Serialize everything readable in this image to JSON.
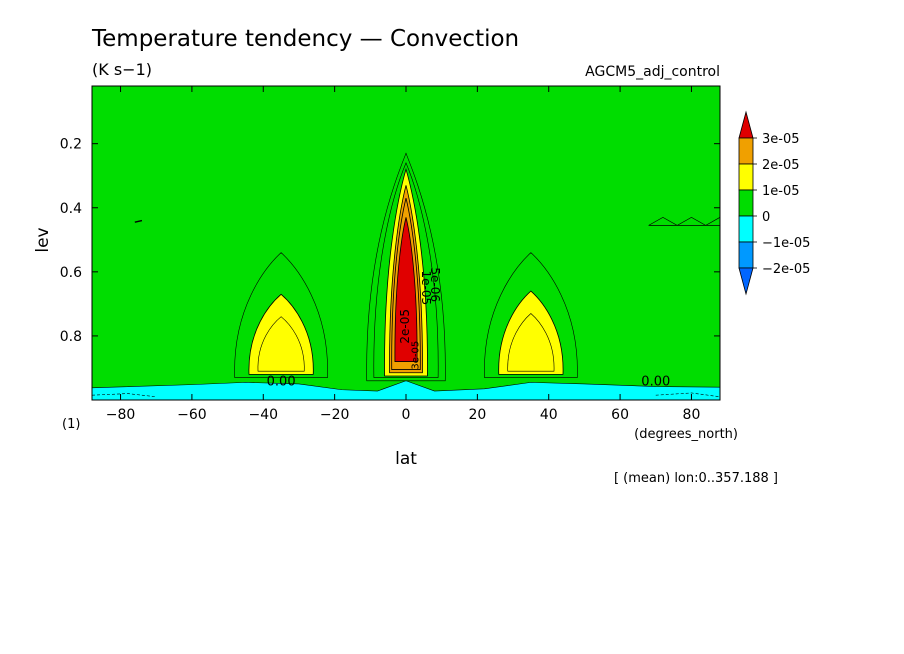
{
  "header": {
    "title": "Temperature tendency — Convection",
    "units": "(K s−1)",
    "dataset": "AGCM5_adj_control",
    "frame": "(1)",
    "footer": "[ (mean) lon:0..357.188 ]"
  },
  "chart_data": {
    "type": "heatmap",
    "title": "Temperature tendency — Convection",
    "subtitle": "(K s−1)",
    "xlabel": "lat",
    "xunits": "(degrees_north)",
    "ylabel": "lev",
    "xlim": [
      -88,
      88
    ],
    "ylim": [
      1.0,
      0.02
    ],
    "y_inverted": true,
    "x_ticks": [
      -80,
      -60,
      -40,
      -20,
      0,
      20,
      40,
      60,
      80
    ],
    "y_ticks": [
      0.2,
      0.4,
      0.6,
      0.8
    ],
    "colorbar": {
      "labels": [
        "3e-05",
        "2e-05",
        "1e-05",
        "0",
        "−1e-05",
        "−2e-05"
      ],
      "levels": [
        {
          "min": 3e-05,
          "max": null,
          "color": "#e00000"
        },
        {
          "min": 2e-05,
          "max": 3e-05,
          "color": "#f0a000"
        },
        {
          "min": 1e-05,
          "max": 2e-05,
          "color": "#ffff00"
        },
        {
          "min": 0,
          "max": 1e-05,
          "color": "#00dd00"
        },
        {
          "min": -1e-05,
          "max": 0,
          "color": "#00ffff"
        },
        {
          "min": -2e-05,
          "max": -1e-05,
          "color": "#0099ff"
        },
        {
          "min": null,
          "max": -2e-05,
          "color": "#0066ff"
        }
      ]
    },
    "features": [
      {
        "name": "tropical maximum",
        "lat_range": [
          -6,
          6
        ],
        "lev_range": [
          0.28,
          0.92
        ],
        "peak_lev_range": [
          0.43,
          0.88
        ],
        "peak_value": ">3e-05"
      },
      {
        "name": "southern midlatitude maximum",
        "lat_range": [
          -44,
          -26
        ],
        "lev_range": [
          0.67,
          0.92
        ],
        "value": "1e-05 to 2e-05"
      },
      {
        "name": "northern midlatitude maximum",
        "lat_range": [
          26,
          44
        ],
        "lev_range": [
          0.66,
          0.92
        ],
        "value": "1e-05 to 2e-05"
      },
      {
        "name": "near-surface cooling",
        "lat_range": [
          -88,
          88
        ],
        "lev_range": [
          0.94,
          1.0
        ],
        "value": "−1e-05 to 0"
      }
    ],
    "contour_labels": [
      "0.00",
      "0.00",
      "2e-05",
      "1e-05",
      "5e-06",
      "3e-05"
    ]
  }
}
